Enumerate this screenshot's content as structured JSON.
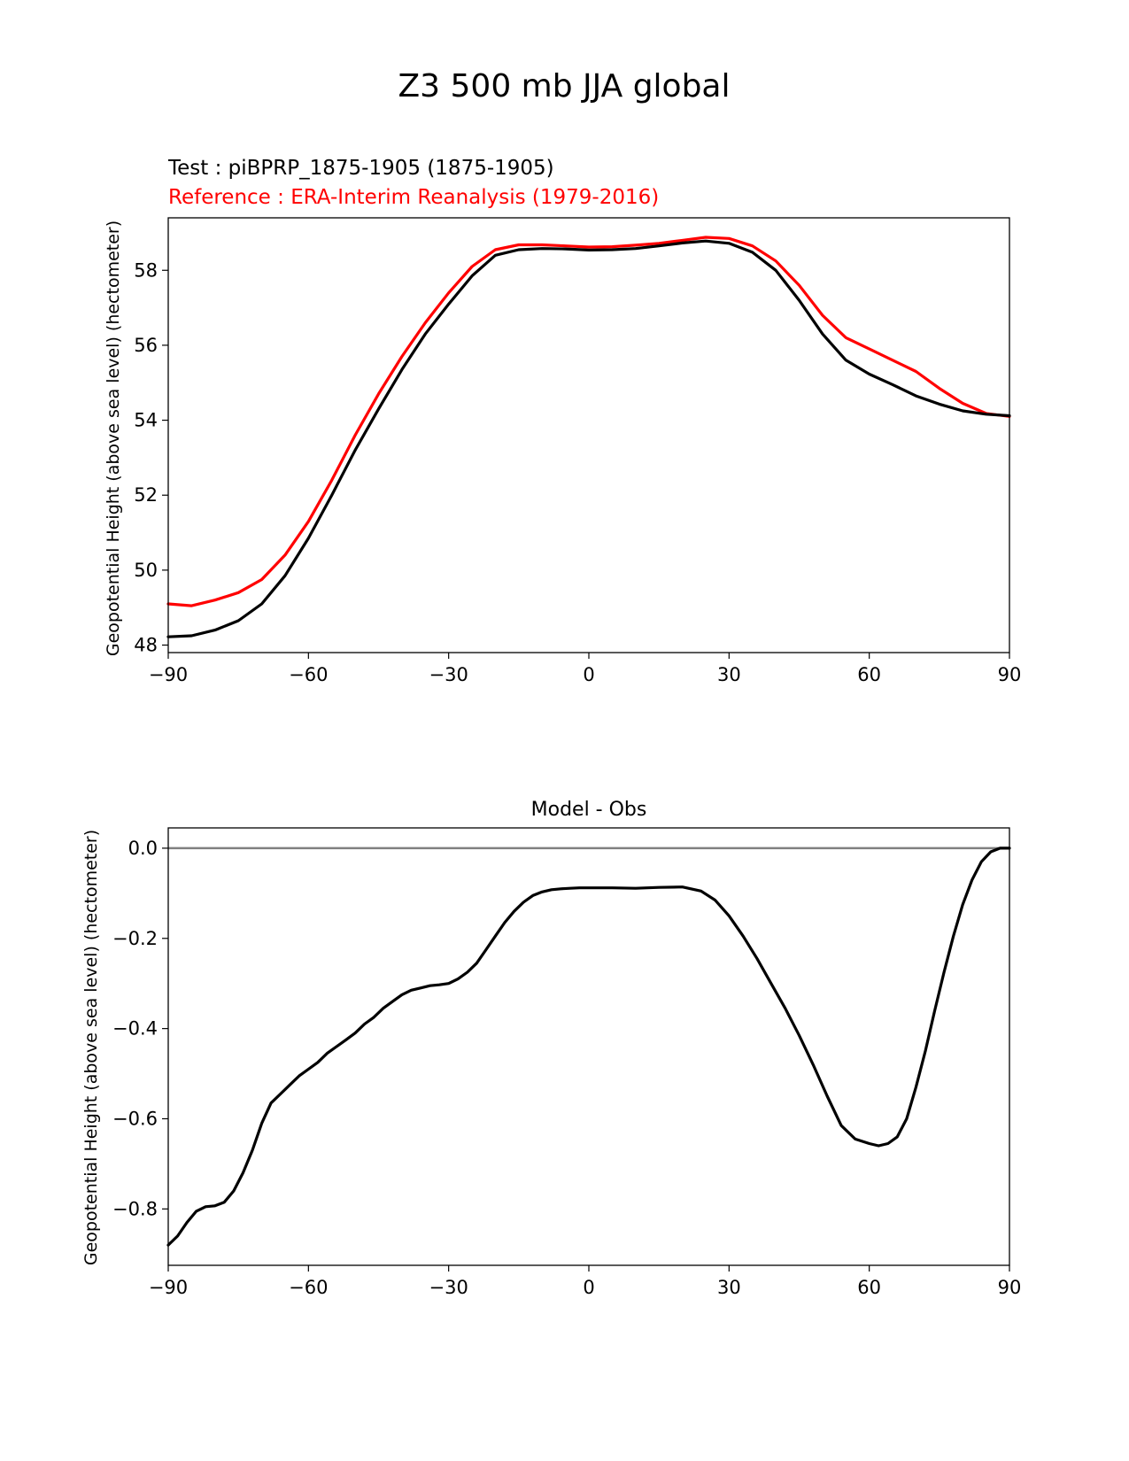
{
  "figure": {
    "title": "Z3 500 mb JJA global"
  },
  "chart_data": [
    {
      "type": "line",
      "test_label": "Test : piBPRP_1875-1905 (1875-1905)",
      "reference_label": "Reference : ERA-Interim Reanalysis (1979-2016)",
      "ylabel": "Geopotential Height (above sea level) (hectometer)",
      "xlabel": "",
      "xlim": [
        -90,
        90
      ],
      "ylim": [
        47.8,
        59.4
      ],
      "xticks": [
        -90,
        -60,
        -30,
        0,
        30,
        60,
        90
      ],
      "xtick_labels": [
        "−90",
        "−60",
        "−30",
        "0",
        "30",
        "60",
        "90"
      ],
      "yticks": [
        48,
        50,
        52,
        54,
        56,
        58
      ],
      "ytick_labels": [
        "48",
        "50",
        "52",
        "54",
        "56",
        "58"
      ],
      "series": [
        {
          "name": "Reference",
          "color": "#ff0000",
          "x": [
            -90,
            -85,
            -80,
            -75,
            -70,
            -65,
            -60,
            -55,
            -50,
            -45,
            -40,
            -35,
            -30,
            -25,
            -20,
            -15,
            -10,
            -5,
            0,
            5,
            10,
            15,
            20,
            25,
            30,
            35,
            40,
            45,
            50,
            55,
            60,
            65,
            70,
            75,
            80,
            85,
            90
          ],
          "y": [
            49.1,
            49.05,
            49.2,
            49.4,
            49.75,
            50.4,
            51.3,
            52.4,
            53.6,
            54.7,
            55.7,
            56.6,
            57.4,
            58.1,
            58.55,
            58.68,
            58.68,
            58.65,
            58.62,
            58.63,
            58.67,
            58.72,
            58.8,
            58.88,
            58.85,
            58.65,
            58.25,
            57.6,
            56.8,
            56.2,
            55.9,
            55.6,
            55.3,
            54.85,
            54.45,
            54.18,
            54.1
          ]
        },
        {
          "name": "Test",
          "color": "#000000",
          "x": [
            -90,
            -85,
            -80,
            -75,
            -70,
            -65,
            -60,
            -55,
            -50,
            -45,
            -40,
            -35,
            -30,
            -25,
            -20,
            -15,
            -10,
            -5,
            0,
            5,
            10,
            15,
            20,
            25,
            30,
            35,
            40,
            45,
            50,
            55,
            60,
            65,
            70,
            75,
            80,
            85,
            90
          ],
          "y": [
            48.22,
            48.25,
            48.4,
            48.65,
            49.1,
            49.85,
            50.85,
            52.0,
            53.2,
            54.3,
            55.35,
            56.3,
            57.1,
            57.85,
            58.4,
            58.55,
            58.58,
            58.57,
            58.54,
            58.55,
            58.58,
            58.65,
            58.73,
            58.78,
            58.72,
            58.48,
            58.0,
            57.2,
            56.3,
            55.6,
            55.23,
            54.95,
            54.65,
            54.43,
            54.25,
            54.16,
            54.12
          ]
        }
      ]
    },
    {
      "type": "line",
      "title": "Model - Obs",
      "ylabel": "Geopotential Height (above sea level) (hectometer)",
      "xlabel": "",
      "xlim": [
        -90,
        90
      ],
      "ylim": [
        -0.925,
        0.045
      ],
      "xticks": [
        -90,
        -60,
        -30,
        0,
        30,
        60,
        90
      ],
      "xtick_labels": [
        "−90",
        "−60",
        "−30",
        "0",
        "30",
        "60",
        "90"
      ],
      "yticks": [
        0.0,
        -0.2,
        -0.4,
        -0.6,
        -0.8
      ],
      "ytick_labels": [
        "0.0",
        "−0.2",
        "−0.4",
        "−0.6",
        "−0.8"
      ],
      "zero_line": 0.0,
      "series": [
        {
          "name": "Model - Obs",
          "color": "#000000",
          "x": [
            -90,
            -88,
            -86,
            -84,
            -82,
            -80,
            -78,
            -76,
            -74,
            -72,
            -70,
            -68,
            -66,
            -64,
            -62,
            -60,
            -58,
            -56,
            -54,
            -52,
            -50,
            -48,
            -46,
            -44,
            -42,
            -40,
            -38,
            -36,
            -34,
            -32,
            -30,
            -28,
            -26,
            -24,
            -22,
            -20,
            -18,
            -16,
            -14,
            -12,
            -10,
            -8,
            -6,
            -4,
            -2,
            0,
            5,
            10,
            15,
            20,
            24,
            27,
            30,
            33,
            36,
            39,
            42,
            45,
            48,
            51,
            54,
            57,
            60,
            62,
            64,
            66,
            68,
            70,
            72,
            74,
            76,
            78,
            80,
            82,
            84,
            86,
            88,
            90
          ],
          "y": [
            -0.88,
            -0.86,
            -0.83,
            -0.805,
            -0.795,
            -0.793,
            -0.785,
            -0.76,
            -0.72,
            -0.67,
            -0.61,
            -0.565,
            -0.545,
            -0.525,
            -0.505,
            -0.49,
            -0.475,
            -0.455,
            -0.44,
            -0.425,
            -0.41,
            -0.39,
            -0.375,
            -0.355,
            -0.34,
            -0.325,
            -0.315,
            -0.31,
            -0.305,
            -0.303,
            -0.3,
            -0.29,
            -0.275,
            -0.255,
            -0.225,
            -0.195,
            -0.165,
            -0.14,
            -0.12,
            -0.105,
            -0.097,
            -0.092,
            -0.09,
            -0.089,
            -0.088,
            -0.088,
            -0.088,
            -0.089,
            -0.087,
            -0.086,
            -0.095,
            -0.115,
            -0.15,
            -0.195,
            -0.245,
            -0.3,
            -0.355,
            -0.415,
            -0.48,
            -0.55,
            -0.615,
            -0.645,
            -0.655,
            -0.66,
            -0.655,
            -0.64,
            -0.6,
            -0.53,
            -0.45,
            -0.36,
            -0.275,
            -0.195,
            -0.125,
            -0.07,
            -0.03,
            -0.008,
            0.0,
            0.0
          ]
        }
      ]
    }
  ]
}
